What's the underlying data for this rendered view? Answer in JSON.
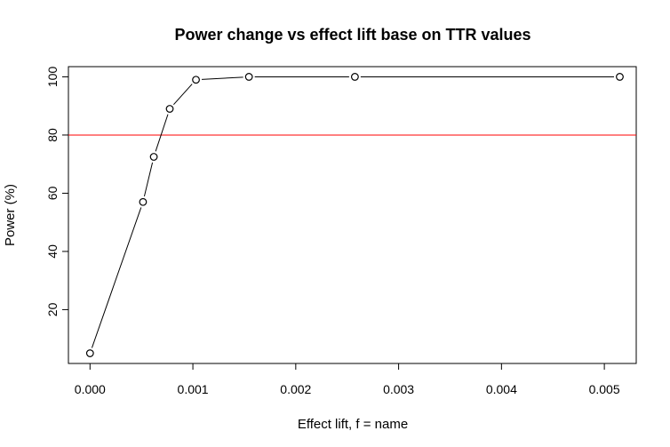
{
  "chart_data": {
    "type": "line",
    "title": "Power change vs effect lift base on TTR values",
    "xlabel": "Effect lift, f = name",
    "ylabel": "Power (%)",
    "xlim": [
      -0.00021,
      0.00531
    ],
    "ylim": [
      1.5,
      103.5
    ],
    "x_ticks": [
      0,
      0.001,
      0.002,
      0.003,
      0.004,
      0.005
    ],
    "x_tick_labels": [
      "0.000",
      "0.001",
      "0.002",
      "0.003",
      "0.004",
      "0.005"
    ],
    "y_ticks": [
      20,
      40,
      60,
      80,
      100
    ],
    "y_tick_labels": [
      "20",
      "40",
      "60",
      "80",
      "100"
    ],
    "grid": false,
    "x": [
      0.0,
      0.000515,
      0.00062,
      0.000775,
      0.00103,
      0.001545,
      0.002575,
      0.00515
    ],
    "values": [
      5,
      57,
      72.5,
      89,
      99,
      100,
      100,
      100
    ],
    "reference_line": {
      "y": 80,
      "color": "#ff0000"
    }
  }
}
